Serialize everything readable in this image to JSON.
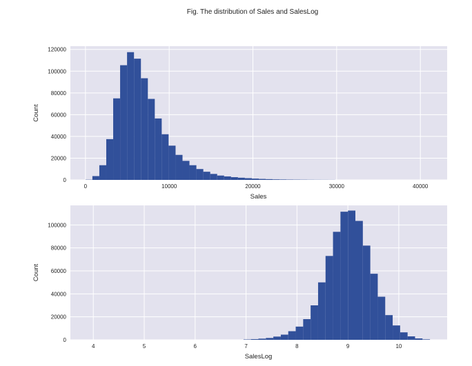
{
  "figure": {
    "title": "Fig. The distribution of Sales and SalesLog",
    "background": "#ffffff",
    "axes_background": "#e3e2ee",
    "grid_color": "#ffffff",
    "bar_color": "#31509a"
  },
  "chart_data": [
    {
      "type": "histogram",
      "xlabel": "Sales",
      "ylabel": "Count",
      "grid": true,
      "xlim": [
        -1800,
        43200
      ],
      "ylim": [
        0,
        123000
      ],
      "xticks": [
        0,
        10000,
        20000,
        30000,
        40000
      ],
      "xtick_labels": [
        "0",
        "10000",
        "20000",
        "30000",
        "40000"
      ],
      "yticks": [
        0,
        20000,
        40000,
        60000,
        80000,
        100000,
        120000
      ],
      "ytick_labels": [
        "0",
        "20000",
        "40000",
        "60000",
        "80000",
        "100000",
        "120000"
      ],
      "bin_start": 0,
      "bin_width": 828,
      "counts": [
        200,
        3500,
        13500,
        37500,
        75000,
        105500,
        117500,
        111500,
        93500,
        74500,
        56500,
        42000,
        31500,
        23000,
        17500,
        13500,
        10000,
        7500,
        5500,
        4000,
        3200,
        2500,
        2000,
        1600,
        1200,
        900,
        700,
        500,
        400,
        300,
        250,
        200,
        150,
        120,
        100,
        80
      ]
    },
    {
      "type": "histogram",
      "xlabel": "SalesLog",
      "ylabel": "Count",
      "grid": true,
      "xlim": [
        3.55,
        10.95
      ],
      "ylim": [
        0,
        117000
      ],
      "xticks": [
        4,
        5,
        6,
        7,
        8,
        9,
        10
      ],
      "xtick_labels": [
        "4",
        "5",
        "6",
        "7",
        "8",
        "9",
        "10"
      ],
      "yticks": [
        0,
        20000,
        40000,
        60000,
        80000,
        100000
      ],
      "ytick_labels": [
        "0",
        "20000",
        "40000",
        "60000",
        "80000",
        "100000"
      ],
      "bin_start": 6.95,
      "bin_width": 0.1465,
      "counts": [
        300,
        600,
        1000,
        1600,
        2800,
        4500,
        7500,
        11500,
        18000,
        30000,
        50000,
        73000,
        94000,
        111500,
        112500,
        103500,
        82000,
        57500,
        37500,
        21500,
        12500,
        6500,
        3000,
        1200,
        400
      ]
    }
  ]
}
